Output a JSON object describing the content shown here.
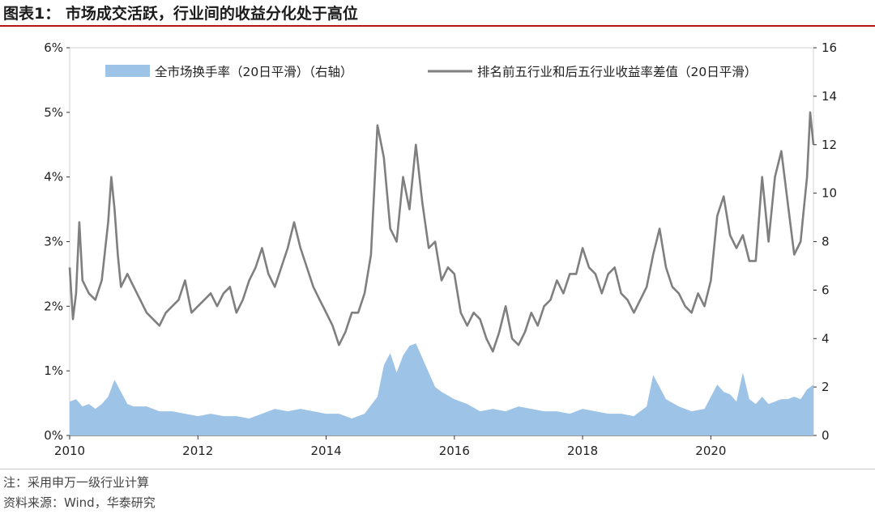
{
  "title": "图表1：  市场成交活跃，行业间的收益分化处于高位",
  "note": "注：采用申万一级行业计算",
  "source": "资料来源：Wind，华泰研究",
  "chart_data": {
    "type": "line+area",
    "x_range": [
      2010,
      2021.6
    ],
    "x_ticks": [
      2010,
      2012,
      2014,
      2016,
      2018,
      2020
    ],
    "y_left": {
      "min": 0,
      "max": 6,
      "ticks": [
        0,
        1,
        2,
        3,
        4,
        5,
        6
      ],
      "tick_labels": [
        "0%",
        "1%",
        "2%",
        "3%",
        "4%",
        "5%",
        "6%"
      ]
    },
    "y_right": {
      "min": 0,
      "max": 16,
      "ticks": [
        0,
        2,
        4,
        6,
        8,
        10,
        12,
        14,
        16
      ],
      "tick_labels": [
        "0",
        "2",
        "4",
        "6",
        "8",
        "10",
        "12",
        "14",
        "16"
      ]
    },
    "legend_placement": "top",
    "series": [
      {
        "name": "全市场换手率（20日平滑）（右轴）",
        "axis": "right",
        "kind": "area",
        "color": "#9dc3e6",
        "x": [
          2010.0,
          2010.1,
          2010.2,
          2010.3,
          2010.4,
          2010.5,
          2010.6,
          2010.7,
          2010.8,
          2010.9,
          2011.0,
          2011.2,
          2011.4,
          2011.6,
          2011.8,
          2012.0,
          2012.2,
          2012.4,
          2012.6,
          2012.8,
          2013.0,
          2013.2,
          2013.4,
          2013.6,
          2013.8,
          2014.0,
          2014.2,
          2014.4,
          2014.6,
          2014.8,
          2014.9,
          2015.0,
          2015.1,
          2015.2,
          2015.3,
          2015.4,
          2015.5,
          2015.6,
          2015.7,
          2015.8,
          2016.0,
          2016.2,
          2016.4,
          2016.6,
          2016.8,
          2017.0,
          2017.2,
          2017.4,
          2017.6,
          2017.8,
          2018.0,
          2018.2,
          2018.4,
          2018.6,
          2018.8,
          2019.0,
          2019.1,
          2019.2,
          2019.3,
          2019.5,
          2019.7,
          2019.9,
          2020.0,
          2020.1,
          2020.2,
          2020.3,
          2020.4,
          2020.5,
          2020.6,
          2020.7,
          2020.8,
          2020.9,
          2021.0,
          2021.1,
          2021.2,
          2021.3,
          2021.4,
          2021.5,
          2021.6
        ],
        "values": [
          1.4,
          1.5,
          1.2,
          1.3,
          1.1,
          1.3,
          1.6,
          2.3,
          1.8,
          1.3,
          1.2,
          1.2,
          1.0,
          1.0,
          0.9,
          0.8,
          0.9,
          0.8,
          0.8,
          0.7,
          0.9,
          1.1,
          1.0,
          1.1,
          1.0,
          0.9,
          0.9,
          0.7,
          0.9,
          1.6,
          2.9,
          3.4,
          2.6,
          3.3,
          3.7,
          3.8,
          3.2,
          2.6,
          2.0,
          1.8,
          1.5,
          1.3,
          1.0,
          1.1,
          1.0,
          1.2,
          1.1,
          1.0,
          1.0,
          0.9,
          1.1,
          1.0,
          0.9,
          0.9,
          0.8,
          1.2,
          2.5,
          2.0,
          1.5,
          1.2,
          1.0,
          1.1,
          1.6,
          2.1,
          1.8,
          1.7,
          1.4,
          2.6,
          1.5,
          1.3,
          1.6,
          1.3,
          1.4,
          1.5,
          1.5,
          1.6,
          1.5,
          1.9,
          2.1
        ]
      },
      {
        "name": "排名前五行业和后五行业收益率差值（20日平滑）",
        "axis": "left",
        "kind": "line",
        "color": "#7f7f7f",
        "x": [
          2010.0,
          2010.05,
          2010.1,
          2010.15,
          2010.2,
          2010.3,
          2010.4,
          2010.5,
          2010.6,
          2010.65,
          2010.7,
          2010.75,
          2010.8,
          2010.9,
          2011.0,
          2011.1,
          2011.2,
          2011.3,
          2011.4,
          2011.5,
          2011.6,
          2011.7,
          2011.8,
          2011.9,
          2012.0,
          2012.1,
          2012.2,
          2012.3,
          2012.4,
          2012.5,
          2012.6,
          2012.7,
          2012.8,
          2012.9,
          2013.0,
          2013.1,
          2013.2,
          2013.3,
          2013.4,
          2013.5,
          2013.6,
          2013.7,
          2013.8,
          2013.9,
          2014.0,
          2014.1,
          2014.2,
          2014.3,
          2014.4,
          2014.5,
          2014.6,
          2014.7,
          2014.8,
          2014.9,
          2015.0,
          2015.1,
          2015.2,
          2015.3,
          2015.4,
          2015.5,
          2015.6,
          2015.7,
          2015.8,
          2015.9,
          2016.0,
          2016.1,
          2016.2,
          2016.3,
          2016.4,
          2016.5,
          2016.6,
          2016.7,
          2016.8,
          2016.9,
          2017.0,
          2017.1,
          2017.2,
          2017.3,
          2017.4,
          2017.5,
          2017.6,
          2017.7,
          2017.8,
          2017.9,
          2018.0,
          2018.1,
          2018.2,
          2018.3,
          2018.4,
          2018.5,
          2018.6,
          2018.7,
          2018.8,
          2018.9,
          2019.0,
          2019.1,
          2019.2,
          2019.3,
          2019.4,
          2019.5,
          2019.6,
          2019.7,
          2019.8,
          2019.9,
          2020.0,
          2020.1,
          2020.2,
          2020.3,
          2020.4,
          2020.5,
          2020.6,
          2020.7,
          2020.8,
          2020.9,
          2021.0,
          2021.1,
          2021.2,
          2021.3,
          2021.4,
          2021.45,
          2021.5,
          2021.55,
          2021.6
        ],
        "values": [
          2.6,
          1.8,
          2.2,
          3.3,
          2.4,
          2.2,
          2.1,
          2.4,
          3.3,
          4.0,
          3.5,
          2.8,
          2.3,
          2.5,
          2.3,
          2.1,
          1.9,
          1.8,
          1.7,
          1.9,
          2.0,
          2.1,
          2.4,
          1.9,
          2.0,
          2.1,
          2.2,
          2.0,
          2.2,
          2.3,
          1.9,
          2.1,
          2.4,
          2.6,
          2.9,
          2.5,
          2.3,
          2.6,
          2.9,
          3.3,
          2.9,
          2.6,
          2.3,
          2.1,
          1.9,
          1.7,
          1.4,
          1.6,
          1.9,
          1.9,
          2.2,
          2.8,
          4.8,
          4.3,
          3.2,
          3.0,
          4.0,
          3.5,
          4.5,
          3.6,
          2.9,
          3.0,
          2.4,
          2.6,
          2.5,
          1.9,
          1.7,
          1.9,
          1.8,
          1.5,
          1.3,
          1.6,
          2.0,
          1.5,
          1.4,
          1.6,
          1.9,
          1.7,
          2.0,
          2.1,
          2.4,
          2.2,
          2.5,
          2.5,
          2.9,
          2.6,
          2.5,
          2.2,
          2.5,
          2.6,
          2.2,
          2.1,
          1.9,
          2.1,
          2.3,
          2.8,
          3.2,
          2.6,
          2.3,
          2.2,
          2.0,
          1.9,
          2.2,
          2.0,
          2.4,
          3.4,
          3.7,
          3.1,
          2.9,
          3.1,
          2.7,
          2.7,
          4.0,
          3.0,
          4.0,
          4.4,
          3.6,
          2.8,
          3.0,
          3.5,
          4.0,
          5.0,
          4.5
        ]
      }
    ]
  }
}
